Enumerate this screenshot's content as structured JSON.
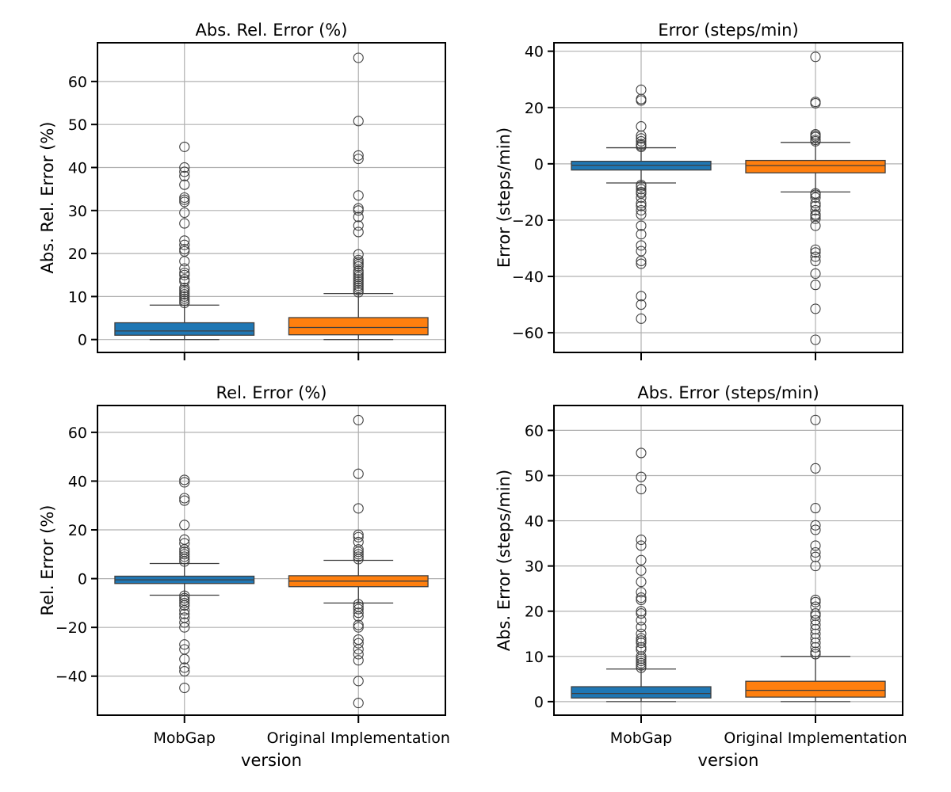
{
  "chart_data": [
    {
      "type": "box",
      "title": "Abs. Rel. Error (%)",
      "xlabel": "",
      "ylabel": "Abs. Rel. Error (%)",
      "ylim": [
        -3,
        69
      ],
      "yticks": [
        0,
        10,
        20,
        30,
        40,
        50,
        60
      ],
      "categories": [
        "MobGap",
        "Original Implementation"
      ],
      "show_xticklabels": false,
      "grid": true,
      "series": [
        {
          "color": "#1f77b4",
          "q1": 1.0,
          "median": 2.0,
          "q3": 3.9,
          "whisker_low": 0.0,
          "whisker_high": 8.0,
          "outliers": [
            44.8,
            40.0,
            39.0,
            38.0,
            36.0,
            33.0,
            32.5,
            32.0,
            29.5,
            27.0,
            23.0,
            22.0,
            21.0,
            20.5,
            18.2,
            16.5,
            15.5,
            15.0,
            14.0,
            13.5,
            12.0,
            11.5,
            11.0,
            10.5,
            10.0,
            9.5,
            9.0,
            8.5
          ]
        },
        {
          "color": "#ff7f0e",
          "q1": 1.1,
          "median": 2.8,
          "q3": 5.1,
          "whisker_low": 0.0,
          "whisker_high": 10.7,
          "outliers": [
            65.5,
            50.8,
            42.8,
            42.0,
            33.5,
            30.5,
            30.0,
            28.5,
            26.5,
            25.0,
            19.8,
            18.5,
            18.0,
            17.5,
            17.0,
            16.0,
            15.5,
            15.0,
            14.5,
            14.0,
            13.5,
            13.0,
            12.5,
            12.0,
            11.5,
            11.0
          ]
        }
      ]
    },
    {
      "type": "box",
      "title": "Error (steps/min)",
      "xlabel": "",
      "ylabel": "Error (steps/min)",
      "ylim": [
        -67,
        43
      ],
      "yticks": [
        -60,
        -40,
        -20,
        0,
        20,
        40
      ],
      "categories": [
        "MobGap",
        "Original Implementation"
      ],
      "show_xticklabels": false,
      "grid": true,
      "series": [
        {
          "color": "#1f77b4",
          "q1": -2.2,
          "median": -0.5,
          "q3": 0.9,
          "whisker_low": -6.8,
          "whisker_high": 5.7,
          "outliers": [
            26.3,
            23.0,
            22.5,
            13.3,
            10.0,
            9.0,
            8.0,
            7.0,
            6.5,
            6.0,
            -7.5,
            -8.0,
            -9.0,
            -10.0,
            -10.5,
            -12.0,
            -14.0,
            -15.0,
            -16.5,
            -18.0,
            -22.0,
            -25.0,
            -29.0,
            -31.0,
            -34.5,
            -35.5,
            -47.0,
            -50.0,
            -55.0
          ]
        },
        {
          "color": "#ff7f0e",
          "q1": -3.2,
          "median": -0.6,
          "q3": 1.2,
          "whisker_low": -10.0,
          "whisker_high": 7.6,
          "outliers": [
            38.0,
            22.0,
            21.5,
            10.5,
            10.0,
            9.5,
            8.5,
            8.0,
            -10.5,
            -11.0,
            -12.0,
            -14.0,
            -15.0,
            -16.5,
            -18.0,
            -18.5,
            -19.5,
            -22.0,
            -30.5,
            -31.5,
            -33.0,
            -34.5,
            -39.0,
            -43.0,
            -51.5,
            -62.5
          ]
        }
      ]
    },
    {
      "type": "box",
      "title": "Rel. Error (%)",
      "xlabel": "version",
      "ylabel": "Rel. Error (%)",
      "ylim": [
        -56,
        71
      ],
      "yticks": [
        -40,
        -20,
        0,
        20,
        40,
        60
      ],
      "categories": [
        "MobGap",
        "Original Implementation"
      ],
      "show_xticklabels": true,
      "grid": true,
      "series": [
        {
          "color": "#1f77b4",
          "q1": -2.0,
          "median": -0.5,
          "q3": 1.0,
          "whisker_low": -6.8,
          "whisker_high": 6.2,
          "outliers": [
            40.5,
            39.5,
            33.0,
            32.0,
            22.0,
            16.0,
            14.5,
            12.0,
            11.0,
            10.0,
            9.0,
            8.0,
            7.0,
            -7.0,
            -8.0,
            -9.0,
            -10.0,
            -11.0,
            -13.0,
            -14.5,
            -16.0,
            -18.0,
            -20.0,
            -27.0,
            -29.0,
            -33.0,
            -36.5,
            -38.0,
            -44.8
          ]
        },
        {
          "color": "#ff7f0e",
          "q1": -3.3,
          "median": -1.0,
          "q3": 1.2,
          "whisker_low": -10.0,
          "whisker_high": 7.5,
          "outliers": [
            65.0,
            43.0,
            28.8,
            18.0,
            17.0,
            15.0,
            12.0,
            11.0,
            10.0,
            9.0,
            8.0,
            -10.5,
            -11.5,
            -12.5,
            -14.0,
            -15.5,
            -19.0,
            -20.0,
            -25.0,
            -26.5,
            -29.0,
            -31.0,
            -33.5,
            -42.0,
            -51.0
          ]
        }
      ]
    },
    {
      "type": "box",
      "title": "Abs. Error (steps/min)",
      "xlabel": "version",
      "ylabel": "Abs. Error (steps/min)",
      "ylim": [
        -3,
        65.5
      ],
      "yticks": [
        0,
        10,
        20,
        30,
        40,
        50,
        60
      ],
      "categories": [
        "MobGap",
        "Original Implementation"
      ],
      "show_xticklabels": true,
      "grid": true,
      "series": [
        {
          "color": "#1f77b4",
          "q1": 0.8,
          "median": 1.8,
          "q3": 3.3,
          "whisker_low": 0.0,
          "whisker_high": 7.2,
          "outliers": [
            55.0,
            49.7,
            47.0,
            35.8,
            34.5,
            31.3,
            29.0,
            26.5,
            24.2,
            23.0,
            22.5,
            20.0,
            19.5,
            18.0,
            16.5,
            15.0,
            14.0,
            13.5,
            13.0,
            12.0,
            11.5,
            10.0,
            9.5,
            9.0,
            8.5,
            8.0,
            7.5
          ]
        },
        {
          "color": "#ff7f0e",
          "q1": 1.0,
          "median": 2.5,
          "q3": 4.5,
          "whisker_low": 0.0,
          "whisker_high": 10.0,
          "outliers": [
            62.3,
            51.6,
            42.8,
            39.0,
            38.0,
            34.5,
            33.0,
            32.0,
            30.0,
            22.5,
            22.0,
            21.0,
            19.5,
            19.0,
            18.0,
            17.0,
            16.0,
            15.0,
            14.0,
            13.0,
            12.0,
            11.0,
            10.5
          ]
        }
      ]
    }
  ]
}
